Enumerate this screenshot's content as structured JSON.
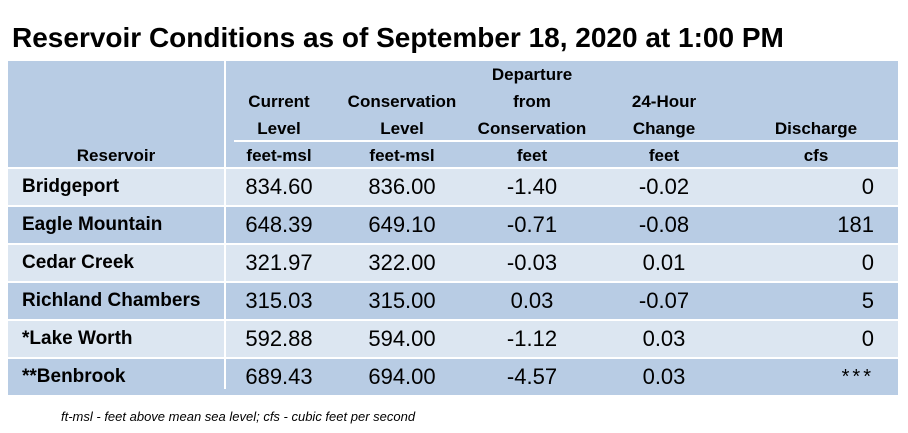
{
  "title": "Reservoir Conditions as of September 18, 2020 at 1:00 PM",
  "headers": [
    {
      "lines": [
        "",
        "",
        "",
        "Reservoir"
      ]
    },
    {
      "lines": [
        "",
        "Current",
        "Level",
        "feet-msl"
      ]
    },
    {
      "lines": [
        "",
        "Conservation",
        "Level",
        "feet-msl"
      ]
    },
    {
      "lines": [
        "Departure",
        "from",
        "Conservation",
        "feet"
      ]
    },
    {
      "lines": [
        "",
        "24-Hour",
        "Change",
        "feet"
      ]
    },
    {
      "lines": [
        "",
        "",
        "Discharge",
        "cfs"
      ]
    }
  ],
  "rows": [
    {
      "reservoir": "Bridgeport",
      "current": "834.60",
      "conservation": "836.00",
      "departure": "-1.40",
      "change": "-0.02",
      "discharge": "0"
    },
    {
      "reservoir": "Eagle Mountain",
      "current": "648.39",
      "conservation": "649.10",
      "departure": "-0.71",
      "change": "-0.08",
      "discharge": "181"
    },
    {
      "reservoir": "Cedar Creek",
      "current": "321.97",
      "conservation": "322.00",
      "departure": "-0.03",
      "change": "0.01",
      "discharge": "0"
    },
    {
      "reservoir": "Richland Chambers",
      "current": "315.03",
      "conservation": "315.00",
      "departure": "0.03",
      "change": "-0.07",
      "discharge": "5"
    },
    {
      "reservoir": "*Lake Worth",
      "current": "592.88",
      "conservation": "594.00",
      "departure": "-1.12",
      "change": "0.03",
      "discharge": "0"
    },
    {
      "reservoir": "**Benbrook",
      "current": "689.43",
      "conservation": "694.00",
      "departure": "-4.57",
      "change": "0.03",
      "discharge": "***"
    }
  ],
  "footnote": "ft-msl - feet above mean sea level; cfs - cubic feet per second",
  "colors": {
    "header_bg": "#b8cce4",
    "row_light": "#dce6f1",
    "row_dark": "#b8cce4"
  }
}
